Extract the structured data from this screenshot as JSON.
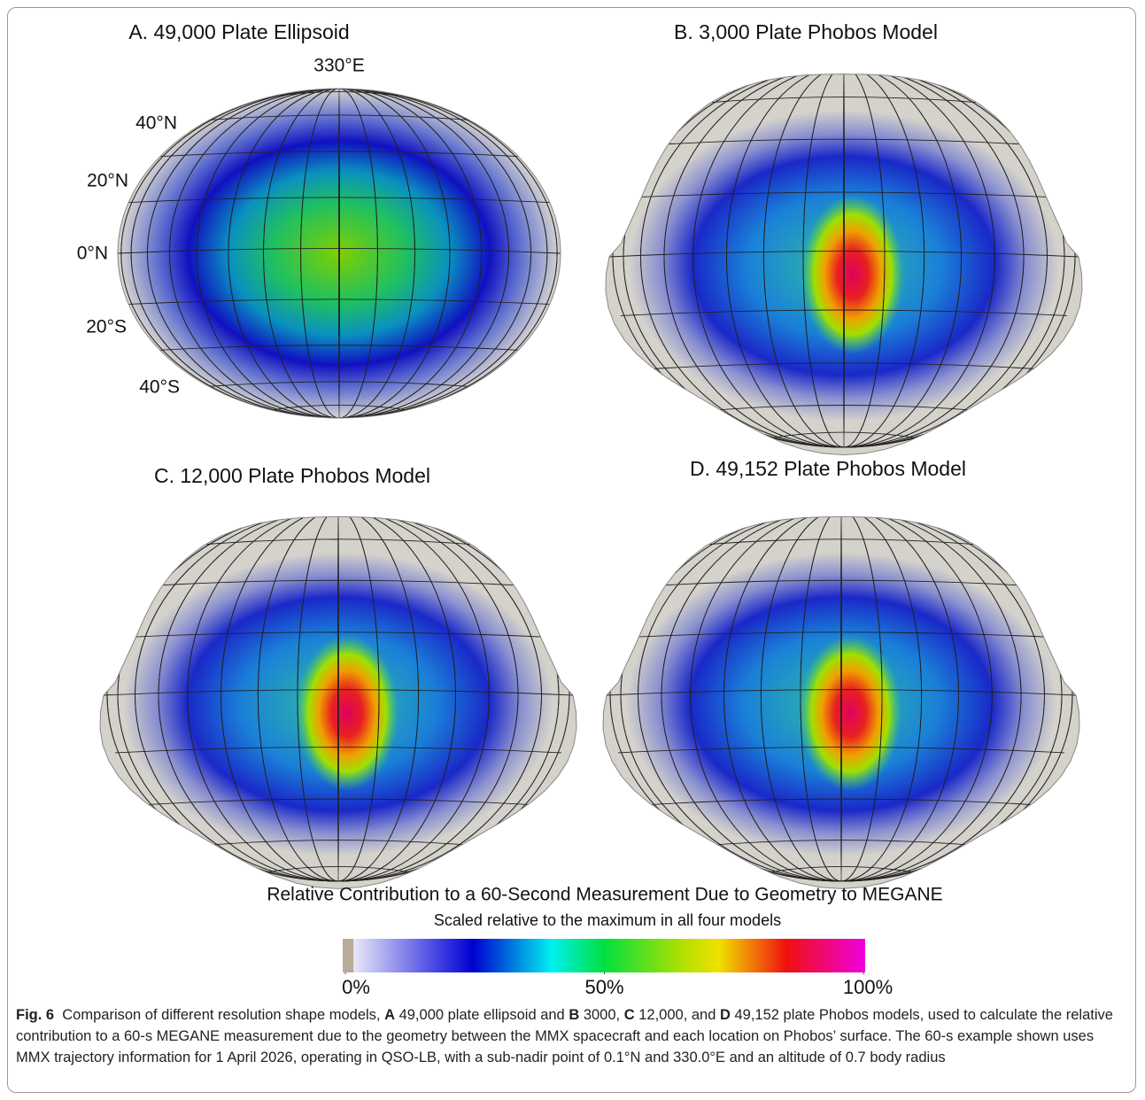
{
  "panels": [
    {
      "title": "A. 49,000 Plate Ellipsoid"
    },
    {
      "title": "B. 3,000 Plate Phobos Model"
    },
    {
      "title": "C. 12,000 Plate Phobos Model"
    },
    {
      "title": "D. 49,152 Plate Phobos Model"
    }
  ],
  "grid_labels": [
    "330°E",
    "40°N",
    "20°N",
    "0°N",
    "20°S",
    "40°S"
  ],
  "colorbar": {
    "title": "Relative Contribution to a 60-Second Measurement Due to Geometry to MEGANE",
    "subtitle": "Scaled relative to the maximum in all four models",
    "lim": [
      0,
      100
    ],
    "ticks": [
      {
        "value": 0,
        "label": "0%"
      },
      {
        "value": 50,
        "label": "50%"
      },
      {
        "value": 100,
        "label": "100%"
      }
    ]
  },
  "caption": {
    "segments": [
      {
        "text": "Fig. 6",
        "bold": true
      },
      {
        "text": "  Comparison of different resolution shape models, ",
        "bold": false
      },
      {
        "text": "A",
        "bold": true
      },
      {
        "text": " 49,000 plate ellipsoid and ",
        "bold": false
      },
      {
        "text": "B",
        "bold": true
      },
      {
        "text": " 3000, ",
        "bold": false
      },
      {
        "text": "C",
        "bold": true
      },
      {
        "text": " 12,000, and ",
        "bold": false
      },
      {
        "text": "D",
        "bold": true
      },
      {
        "text": " 49,152 plate Phobos models, used to calculate the relative contribution to a 60-s MEGANE measurement due to the geometry between the MMX spacecraft and each location on Phobos’ surface. The 60-s example shown uses MMX trajectory information for 1 April 2026, operating in QSO-LB, with a sub-nadir point of 0.1°N and 330.0°E and an altitude of 0.7 body radius",
        "bold": false
      }
    ]
  }
}
